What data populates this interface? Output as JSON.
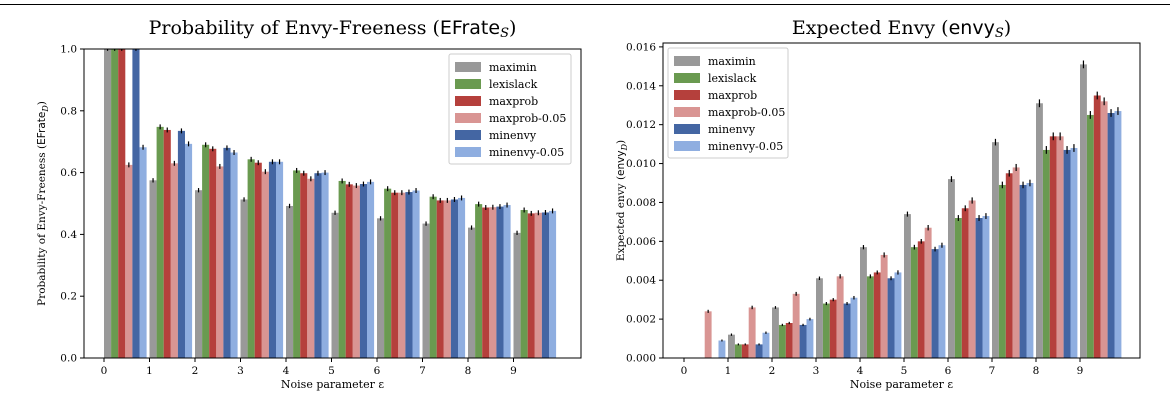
{
  "colors": {
    "maximin": "#999999",
    "lexislack": "#6a9a50",
    "maxprob": "#b5403c",
    "maxprob-0.05": "#d99593",
    "minenvy": "#4466a3",
    "minenvy-0.05": "#8faee0"
  },
  "charts": [
    {
      "id": "left",
      "title_text": "Probability of Envy-Freeness (",
      "title_sf": "EFrate",
      "title_sub": "S",
      "title_close": ")",
      "ylabel_text": "Probability of Envy-Freeness (",
      "ylabel_sf": "EFrate",
      "ylabel_sub": "D",
      "ylabel_close": ")",
      "xlabel": "Noise parameter ε",
      "xticks": [
        "0",
        "1",
        "2",
        "3",
        "4",
        "5",
        "6",
        "7",
        "8",
        "9"
      ],
      "yticks": [
        "0.0",
        "0.2",
        "0.4",
        "0.6",
        "0.8",
        "1.0"
      ]
    },
    {
      "id": "right",
      "title_text": "Expected Envy (",
      "title_sf": "envy",
      "title_sub": "S",
      "title_close": ")",
      "ylabel_text": "Expected envy (",
      "ylabel_sf": "envy",
      "ylabel_sub": "D",
      "ylabel_close": ")",
      "xlabel": "Noise parameter ε",
      "xticks": [
        "0",
        "1",
        "2",
        "3",
        "4",
        "5",
        "6",
        "7",
        "8",
        "9"
      ],
      "yticks": [
        "0.000",
        "0.002",
        "0.004",
        "0.006",
        "0.008",
        "0.010",
        "0.012",
        "0.014",
        "0.016"
      ]
    }
  ],
  "chart_data": [
    {
      "type": "bar",
      "x": [
        0,
        1,
        2,
        3,
        4,
        5,
        6,
        7,
        8,
        9
      ],
      "ylim": [
        0,
        1.0
      ],
      "grid": false,
      "legend_position": "top-right",
      "series": [
        {
          "name": "maximin",
          "values": [
            1.0,
            0.575,
            0.543,
            0.513,
            0.492,
            0.47,
            0.452,
            0.435,
            0.422,
            0.405
          ],
          "errors": [
            0.006,
            0.007,
            0.007,
            0.007,
            0.007,
            0.007,
            0.007,
            0.007,
            0.007,
            0.007
          ]
        },
        {
          "name": "lexislack",
          "values": [
            1.0,
            0.748,
            0.69,
            0.643,
            0.607,
            0.573,
            0.548,
            0.522,
            0.498,
            0.479
          ],
          "errors": [
            0.006,
            0.008,
            0.008,
            0.008,
            0.008,
            0.008,
            0.008,
            0.008,
            0.008,
            0.008
          ]
        },
        {
          "name": "maxprob",
          "values": [
            1.0,
            0.738,
            0.677,
            0.632,
            0.598,
            0.562,
            0.535,
            0.51,
            0.487,
            0.468
          ],
          "errors": [
            0.006,
            0.008,
            0.008,
            0.008,
            0.008,
            0.008,
            0.008,
            0.008,
            0.008,
            0.008
          ]
        },
        {
          "name": "maxprob-0.05",
          "values": [
            0.625,
            0.63,
            0.62,
            0.603,
            0.58,
            0.558,
            0.535,
            0.51,
            0.488,
            0.47
          ],
          "errors": [
            0.008,
            0.008,
            0.008,
            0.008,
            0.008,
            0.008,
            0.008,
            0.008,
            0.008,
            0.008
          ]
        },
        {
          "name": "minenvy",
          "values": [
            1.0,
            0.735,
            0.68,
            0.635,
            0.598,
            0.563,
            0.537,
            0.513,
            0.49,
            0.471
          ],
          "errors": [
            0.006,
            0.008,
            0.008,
            0.008,
            0.008,
            0.008,
            0.008,
            0.008,
            0.008,
            0.008
          ]
        },
        {
          "name": "minenvy-0.05",
          "values": [
            0.682,
            0.693,
            0.665,
            0.635,
            0.6,
            0.57,
            0.542,
            0.518,
            0.495,
            0.476
          ],
          "errors": [
            0.008,
            0.008,
            0.008,
            0.008,
            0.008,
            0.008,
            0.008,
            0.008,
            0.008,
            0.008
          ]
        }
      ]
    },
    {
      "type": "bar",
      "x": [
        0,
        1,
        2,
        3,
        4,
        5,
        6,
        7,
        8,
        9
      ],
      "ylim": [
        0,
        0.0162
      ],
      "grid": false,
      "legend_position": "top-left",
      "series": [
        {
          "name": "maximin",
          "values": [
            0.0,
            0.0012,
            0.0026,
            0.0041,
            0.0057,
            0.0074,
            0.0092,
            0.0111,
            0.0131,
            0.0151
          ],
          "errors": [
            2e-05,
            6e-05,
            7e-05,
            9e-05,
            0.00011,
            0.00013,
            0.00015,
            0.00017,
            0.0002,
            0.0002
          ]
        },
        {
          "name": "lexislack",
          "values": [
            0.0,
            0.0007,
            0.0017,
            0.0028,
            0.0042,
            0.0057,
            0.0072,
            0.0089,
            0.0107,
            0.0125
          ],
          "errors": [
            2e-05,
            5e-05,
            6e-05,
            8e-05,
            0.0001,
            0.00012,
            0.00015,
            0.00017,
            0.0002,
            0.0002
          ]
        },
        {
          "name": "maxprob",
          "values": [
            0.0,
            0.0007,
            0.0018,
            0.003,
            0.0044,
            0.006,
            0.0077,
            0.0095,
            0.0114,
            0.0135
          ],
          "errors": [
            2e-05,
            5e-05,
            6e-05,
            8e-05,
            0.0001,
            0.00012,
            0.00015,
            0.00017,
            0.0002,
            0.0002
          ]
        },
        {
          "name": "maxprob-0.05",
          "values": [
            0.0024,
            0.0026,
            0.0033,
            0.0042,
            0.0053,
            0.0067,
            0.0081,
            0.0098,
            0.0114,
            0.0132
          ],
          "errors": [
            8e-05,
            9e-05,
            0.0001,
            0.00011,
            0.00013,
            0.00014,
            0.00016,
            0.00018,
            0.0002,
            0.0002
          ]
        },
        {
          "name": "minenvy",
          "values": [
            0.0,
            0.0007,
            0.0017,
            0.0028,
            0.0041,
            0.0056,
            0.0072,
            0.0089,
            0.0107,
            0.0126
          ],
          "errors": [
            2e-05,
            5e-05,
            6e-05,
            8e-05,
            0.0001,
            0.00012,
            0.00015,
            0.00017,
            0.0002,
            0.0002
          ]
        },
        {
          "name": "minenvy-0.05",
          "values": [
            0.0009,
            0.0013,
            0.002,
            0.0031,
            0.0044,
            0.0058,
            0.0073,
            0.009,
            0.0108,
            0.0127
          ],
          "errors": [
            5e-05,
            6e-05,
            7e-05,
            9e-05,
            0.00011,
            0.00013,
            0.00015,
            0.00017,
            0.0002,
            0.0002
          ]
        }
      ]
    }
  ]
}
